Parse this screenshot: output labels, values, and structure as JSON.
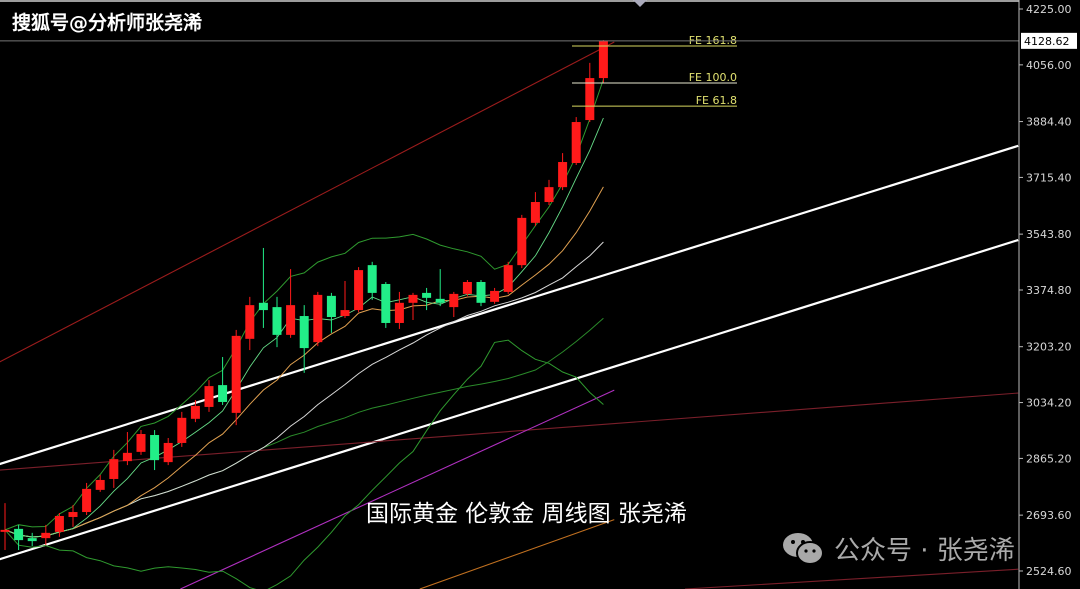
{
  "watermarks": {
    "top_left": "搜狐号@分析师张尧浠",
    "center": "国际黄金 伦敦金 周线图 张尧浠",
    "bottom_right": "公众号 · 张尧浠",
    "bottom_right_icon": "wechat-icon"
  },
  "colors": {
    "background": "#000000",
    "bull": "#ff1a1a",
    "bear": "#22ee88",
    "fib": "#d8d860",
    "channel": "#ffffff",
    "regression": "#8b1a1a"
  },
  "chart_data": {
    "type": "candlestick",
    "title": "",
    "timeframe": "weekly",
    "ylim": [
      2470,
      4235
    ],
    "y_ticks": [
      "4225.00",
      "4056.00",
      "3884.40",
      "3715.40",
      "3543.80",
      "3374.80",
      "3203.20",
      "3034.20",
      "2865.20",
      "2693.60",
      "2524.60"
    ],
    "current_price": "4128.62",
    "grid": false,
    "candles": [
      [
        2643,
        2730,
        2588,
        2649
      ],
      [
        2652,
        2664,
        2588,
        2618
      ],
      [
        2624,
        2640,
        2600,
        2615
      ],
      [
        2624,
        2664,
        2603,
        2640
      ],
      [
        2643,
        2700,
        2628,
        2691
      ],
      [
        2688,
        2724,
        2658,
        2703
      ],
      [
        2703,
        2791,
        2694,
        2773
      ],
      [
        2770,
        2815,
        2764,
        2800
      ],
      [
        2803,
        2891,
        2776,
        2863
      ],
      [
        2857,
        2945,
        2845,
        2882
      ],
      [
        2885,
        2951,
        2876,
        2939
      ],
      [
        2936,
        2951,
        2830,
        2860
      ],
      [
        2854,
        2927,
        2845,
        2912
      ],
      [
        2912,
        3006,
        2900,
        2988
      ],
      [
        2985,
        3042,
        2975,
        3024
      ],
      [
        3021,
        3102,
        3006,
        3084
      ],
      [
        3087,
        3172,
        3027,
        3036
      ],
      [
        3003,
        3254,
        2966,
        3236
      ],
      [
        3227,
        3354,
        3193,
        3329
      ],
      [
        3336,
        3502,
        3260,
        3314
      ],
      [
        3323,
        3354,
        3202,
        3239
      ],
      [
        3239,
        3438,
        3230,
        3329
      ],
      [
        3296,
        3329,
        3124,
        3199
      ],
      [
        3217,
        3369,
        3205,
        3360
      ],
      [
        3357,
        3366,
        3245,
        3293
      ],
      [
        3296,
        3402,
        3290,
        3314
      ],
      [
        3314,
        3444,
        3308,
        3435
      ],
      [
        3450,
        3460,
        3345,
        3366
      ],
      [
        3393,
        3399,
        3260,
        3275
      ],
      [
        3275,
        3369,
        3257,
        3336
      ],
      [
        3336,
        3366,
        3284,
        3360
      ],
      [
        3366,
        3381,
        3314,
        3351
      ],
      [
        3348,
        3438,
        3326,
        3336
      ],
      [
        3323,
        3369,
        3293,
        3363
      ],
      [
        3363,
        3405,
        3357,
        3399
      ],
      [
        3399,
        3405,
        3326,
        3336
      ],
      [
        3339,
        3381,
        3333,
        3372
      ],
      [
        3369,
        3460,
        3363,
        3450
      ],
      [
        3450,
        3602,
        3441,
        3593
      ],
      [
        3578,
        3671,
        3568,
        3641
      ],
      [
        3641,
        3708,
        3632,
        3686
      ],
      [
        3686,
        3789,
        3677,
        3762
      ],
      [
        3759,
        3898,
        3753,
        3883
      ],
      [
        3889,
        4062,
        3883,
        4016
      ],
      [
        4016,
        4131,
        4002,
        4128.62
      ]
    ],
    "candle_fields": [
      "open",
      "high",
      "low",
      "close"
    ],
    "fibonacci_expansion": [
      {
        "label": "FE 161.8",
        "price": 4113
      },
      {
        "label": "FE 100.0",
        "price": 4001
      },
      {
        "label": "FE 61.8",
        "price": 3931
      }
    ],
    "trend_lines": [
      {
        "kind": "channel-upper",
        "color": "#ffffff",
        "points": [
          [
            -0.4,
            2848
          ],
          [
            74.5,
            3811
          ]
        ]
      },
      {
        "kind": "channel-lower",
        "color": "#ffffff",
        "points": [
          [
            -0.4,
            2560
          ],
          [
            74.5,
            3526
          ]
        ]
      },
      {
        "kind": "regression-upper",
        "color": "#9b1c1c",
        "points": [
          [
            -0.4,
            3157
          ],
          [
            44.8,
            4125
          ]
        ]
      },
      {
        "kind": "regression-mid",
        "color": "#7a1f2a",
        "points": [
          [
            -0.4,
            2830
          ],
          [
            74.5,
            3063
          ]
        ]
      },
      {
        "kind": "regression-lower",
        "color": "#7a1f2a",
        "points": [
          [
            50,
            2470
          ],
          [
            74.5,
            2530
          ]
        ]
      },
      {
        "kind": "ma-purple",
        "color": "#b030c0",
        "points": [
          [
            12.9,
            2470
          ],
          [
            44.8,
            3072
          ]
        ]
      },
      {
        "kind": "ma-orange-long",
        "color": "#c07020",
        "points": [
          [
            30.5,
            2470
          ],
          [
            44.8,
            2680
          ]
        ]
      }
    ],
    "indicators": [
      "MA5",
      "MA10",
      "MA20",
      "MA40",
      "Bollinger Bands 20"
    ]
  }
}
